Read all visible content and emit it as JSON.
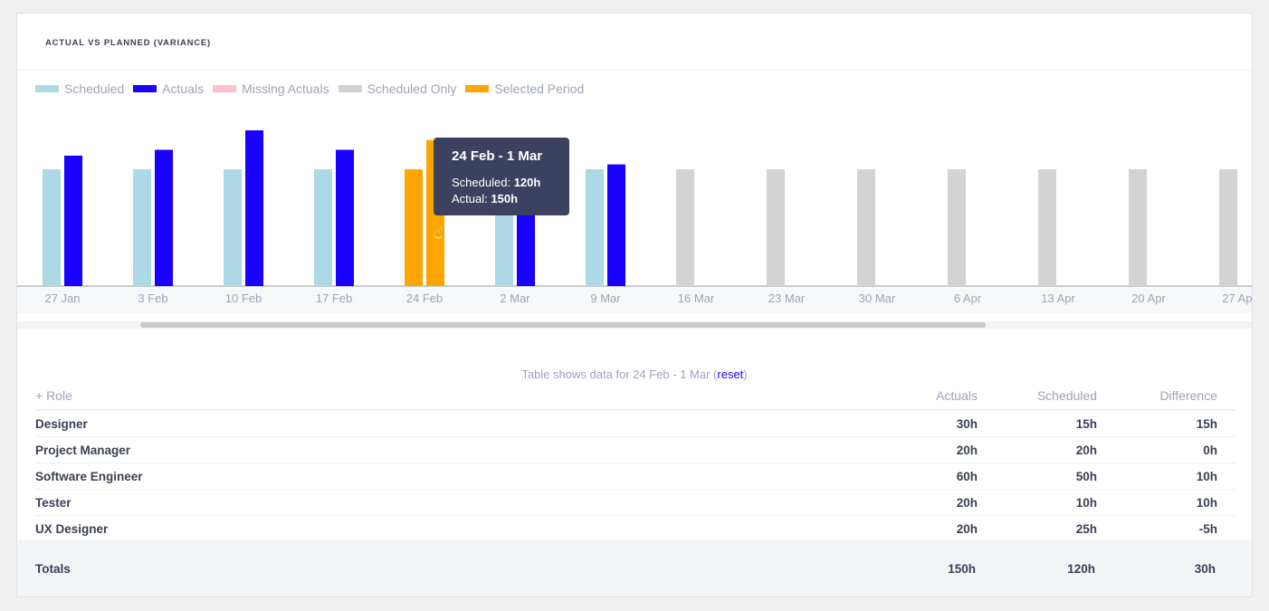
{
  "title": "ACTUAL VS PLANNED (VARIANCE)",
  "colors": {
    "scheduled": "#add8e6",
    "actuals": "#1a00ff",
    "missing_actuals": "#ffc0cb",
    "scheduled_only": "#d3d3d3",
    "selected_period": "#ffa500"
  },
  "legend": [
    "Scheduled",
    "Actuals",
    "Missing Actuals",
    "Scheduled Only",
    "Selected Period"
  ],
  "chart_data": {
    "type": "bar",
    "categories": [
      "27 Jan",
      "3 Feb",
      "10 Feb",
      "17 Feb",
      "24 Feb",
      "2 Mar",
      "9 Mar",
      "16 Mar",
      "23 Mar",
      "30 Mar",
      "6 Apr",
      "13 Apr",
      "20 Apr",
      "27 Apr"
    ],
    "series": [
      {
        "name": "Scheduled",
        "values": [
          120,
          120,
          120,
          120,
          120,
          120,
          120,
          120,
          120,
          120,
          120,
          120,
          120,
          120
        ]
      },
      {
        "name": "Actuals",
        "values": [
          134,
          140,
          160,
          140,
          150,
          130,
          125,
          null,
          null,
          null,
          null,
          null,
          null,
          null
        ]
      }
    ],
    "selected_category": "24 Feb",
    "ylim": [
      0,
      160
    ],
    "grid": false,
    "legend_position": "top-left"
  },
  "tooltip": {
    "title": "24 Feb - 1 Mar",
    "scheduled_label": "Scheduled:",
    "scheduled_value": "120h",
    "actual_label": "Actual:",
    "actual_value": "150h"
  },
  "caption": {
    "prefix": "Table shows data for 24 Feb - 1 Mar (",
    "link": "reset",
    "suffix": ")"
  },
  "table": {
    "headers": [
      "+ Role",
      "Actuals",
      "Scheduled",
      "Difference"
    ],
    "rows": [
      [
        "Designer",
        "30h",
        "15h",
        "15h"
      ],
      [
        "Project Manager",
        "20h",
        "20h",
        "0h"
      ],
      [
        "Software Engineer",
        "60h",
        "50h",
        "10h"
      ],
      [
        "Tester",
        "20h",
        "10h",
        "10h"
      ],
      [
        "UX Designer",
        "20h",
        "25h",
        "-5h"
      ]
    ],
    "totals": [
      "Totals",
      "150h",
      "120h",
      "30h"
    ]
  }
}
